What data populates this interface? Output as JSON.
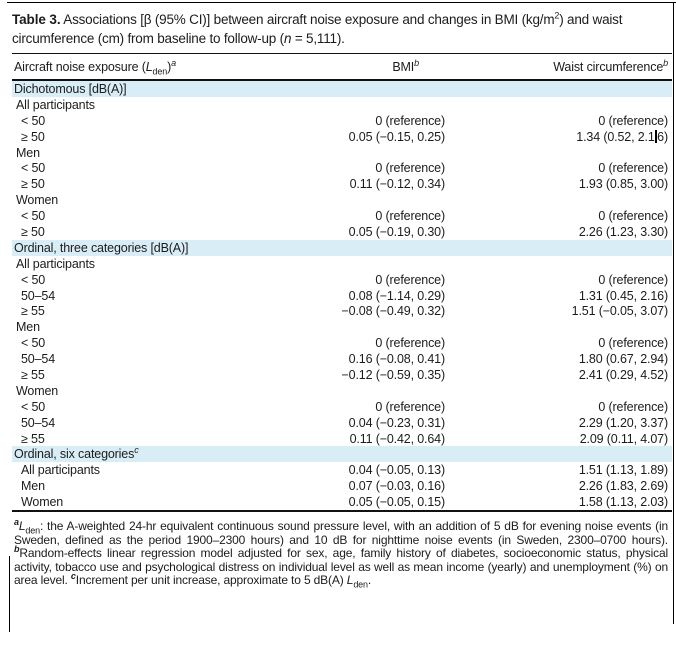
{
  "colors": {
    "section_band": "#d9edf7",
    "rule": "#000000",
    "text": "#1c1c1c"
  },
  "title": {
    "label": "Table 3.",
    "text_a": " Associations [β (95% CI)] between aircraft noise exposure and changes in BMI (kg/m",
    "sup": "2",
    "text_b": ") and waist circumference (cm) from baseline to follow-up (",
    "n_italic": "n",
    "text_c": " = 5,111)."
  },
  "table": {
    "columns": [
      {
        "main": "Aircraft noise exposure (",
        "italic": "L",
        "sub": "den",
        "close": ")",
        "sup": "a"
      },
      {
        "main": "BMI",
        "sup": "b"
      },
      {
        "main": "Waist circumference",
        "sup": "b"
      }
    ],
    "sections": [
      {
        "header": "Dichotomous [dB(A)]",
        "groups": [
          {
            "label": "All participants",
            "rows": [
              {
                "label": "< 50",
                "bmi": "0 (reference)",
                "waist": "0 (reference)"
              },
              {
                "label": "≥ 50",
                "bmi": "0.05 (−0.15, 0.25)",
                "waist": "1.34 (0.52, 2.16)",
                "caret": true
              }
            ]
          },
          {
            "label": "Men",
            "rows": [
              {
                "label": "< 50",
                "bmi": "0 (reference)",
                "waist": "0 (reference)"
              },
              {
                "label": "≥ 50",
                "bmi": "0.11 (−0.12, 0.34)",
                "waist": "1.93 (0.85, 3.00)"
              }
            ]
          },
          {
            "label": "Women",
            "rows": [
              {
                "label": "< 50",
                "bmi": "0 (reference)",
                "waist": "0 (reference)"
              },
              {
                "label": "≥ 50",
                "bmi": "0.05 (−0.19, 0.30)",
                "waist": "2.26 (1.23, 3.30)"
              }
            ]
          }
        ]
      },
      {
        "header": "Ordinal, three categories [dB(A)]",
        "groups": [
          {
            "label": "All participants",
            "rows": [
              {
                "label": "< 50",
                "bmi": "0 (reference)",
                "waist": "0 (reference)"
              },
              {
                "label": "50–54",
                "bmi": "0.08 (−1.14, 0.29)",
                "waist": "1.31 (0.45, 2.16)"
              },
              {
                "label": "≥ 55",
                "bmi": "−0.08 (−0.49, 0.32)",
                "waist": "1.51 (−0.05, 3.07)"
              }
            ]
          },
          {
            "label": "Men",
            "rows": [
              {
                "label": "< 50",
                "bmi": "0 (reference)",
                "waist": "0 (reference)"
              },
              {
                "label": "50–54",
                "bmi": "0.16 (−0.08, 0.41)",
                "waist": "1.80 (0.67, 2.94)"
              },
              {
                "label": "≥ 55",
                "bmi": "−0.12 (−0.59, 0.35)",
                "waist": "2.41 (0.29, 4.52)"
              }
            ]
          },
          {
            "label": "Women",
            "rows": [
              {
                "label": "< 50",
                "bmi": "0 (reference)",
                "waist": "0 (reference)"
              },
              {
                "label": "50–54",
                "bmi": "0.04 (−0.23, 0.31)",
                "waist": "2.29 (1.20, 3.37)"
              },
              {
                "label": "≥ 55",
                "bmi": "0.11 (−0.42, 0.64)",
                "waist": "2.09 (0.11, 4.07)"
              }
            ]
          }
        ]
      },
      {
        "header": "Ordinal, six categories",
        "header_sup": "c",
        "groups": [
          {
            "rows": [
              {
                "label": "All participants",
                "bmi": "0.04 (−0.05, 0.13)",
                "waist": "1.51 (1.13, 1.89)"
              },
              {
                "label": "Men",
                "bmi": "0.07 (−0.03, 0.16)",
                "waist": "2.26 (1.83, 2.69)"
              },
              {
                "label": "Women",
                "bmi": "0.05 (−0.05, 0.15)",
                "waist": "1.58 (1.13, 2.03)"
              }
            ]
          }
        ]
      }
    ]
  },
  "footnotes": {
    "a_sup": "a",
    "a_L": "L",
    "a_sub": "den",
    "a_text": ": the A-weighted 24-hr equivalent continuous sound pressure level, with an addition of 5 dB for evening noise events (in Sweden, defined as the period 1900–2300 hours) and 10 dB for nighttime noise events (in Sweden, 2300–0700 hours). ",
    "b_sup": "b",
    "b_text": "Random-effects linear regression model adjusted for sex, age, family history of diabetes, socioeconomic status, physical activity, tobacco use and psychological distress on individual level as well as mean income (yearly) and unemployment (%) on area level. ",
    "c_sup": "c",
    "c_text": "Increment per unit increase, approximate to 5 dB(A) ",
    "c_L": "L",
    "c_sub": "den",
    "c_end": "."
  }
}
